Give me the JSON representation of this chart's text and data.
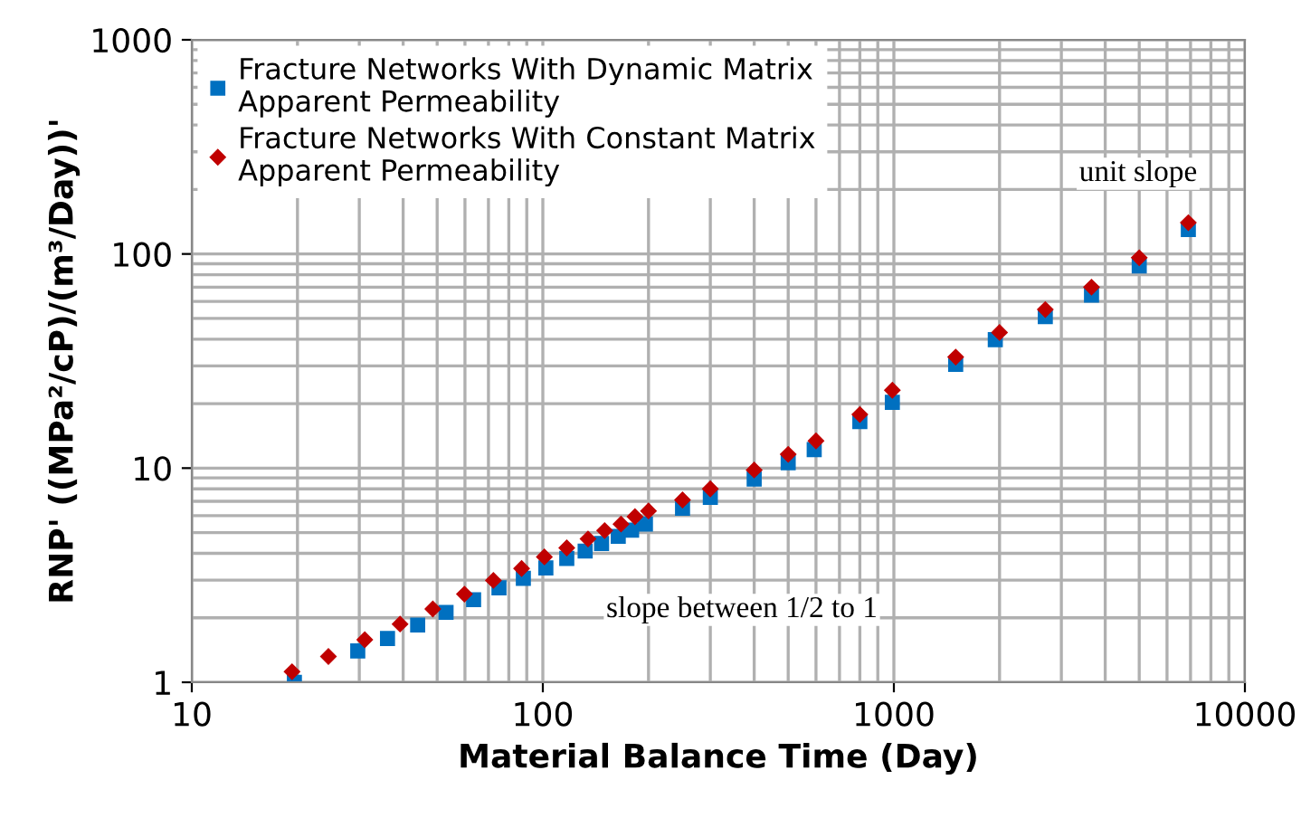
{
  "chart_data": {
    "type": "scatter",
    "xlabel": "Material Balance Time (Day)",
    "ylabel": "RNP' ((MPa²/cP)/(m³/Day))'",
    "log": "xy",
    "xlim": [
      10,
      10000
    ],
    "xticks": [
      10,
      100,
      1000,
      10000
    ],
    "ylim": [
      1,
      1000
    ],
    "yticks": [
      1,
      10,
      100,
      1000
    ],
    "grid": true,
    "legend": "top left",
    "series": [
      {
        "name": "Fracture Networks With Dynamic Matrix Apparent Permeability",
        "color": "#0070c0",
        "marker": "square",
        "x": [
          19.6,
          29.7,
          36.1,
          44,
          53,
          63.5,
          75,
          88,
          102,
          117,
          132,
          147,
          164,
          179,
          196,
          250,
          300,
          400,
          500,
          593,
          800,
          990,
          1500,
          1945,
          2700,
          3656,
          5000,
          6900
        ],
        "values": [
          1.0,
          1.4,
          1.6,
          1.85,
          2.12,
          2.43,
          2.76,
          3.06,
          3.42,
          3.79,
          4.1,
          4.45,
          4.8,
          5.13,
          5.48,
          6.5,
          7.3,
          8.9,
          10.6,
          12.2,
          16.5,
          20.3,
          30.5,
          39.8,
          51,
          64.3,
          88,
          130
        ]
      },
      {
        "name": "Fracture Networks With Constant Matrix Apparent Permeability",
        "color": "#c00000",
        "marker": "diamond",
        "x": [
          19.3,
          24.5,
          31.1,
          39.2,
          48.6,
          59.8,
          72.3,
          87,
          101,
          117,
          134.5,
          150,
          167,
          183,
          200,
          250,
          300,
          400,
          500,
          600,
          800,
          990,
          1500,
          2000,
          2700,
          3656,
          5000,
          6900
        ],
        "values": [
          1.12,
          1.32,
          1.58,
          1.87,
          2.2,
          2.58,
          2.99,
          3.4,
          3.85,
          4.24,
          4.67,
          5.11,
          5.48,
          5.93,
          6.31,
          7.1,
          8.0,
          9.8,
          11.6,
          13.4,
          17.8,
          23.1,
          33,
          43,
          55,
          70,
          96,
          140
        ]
      }
    ],
    "annotations": [
      "unit slope",
      "slope between 1/2 to 1"
    ]
  }
}
